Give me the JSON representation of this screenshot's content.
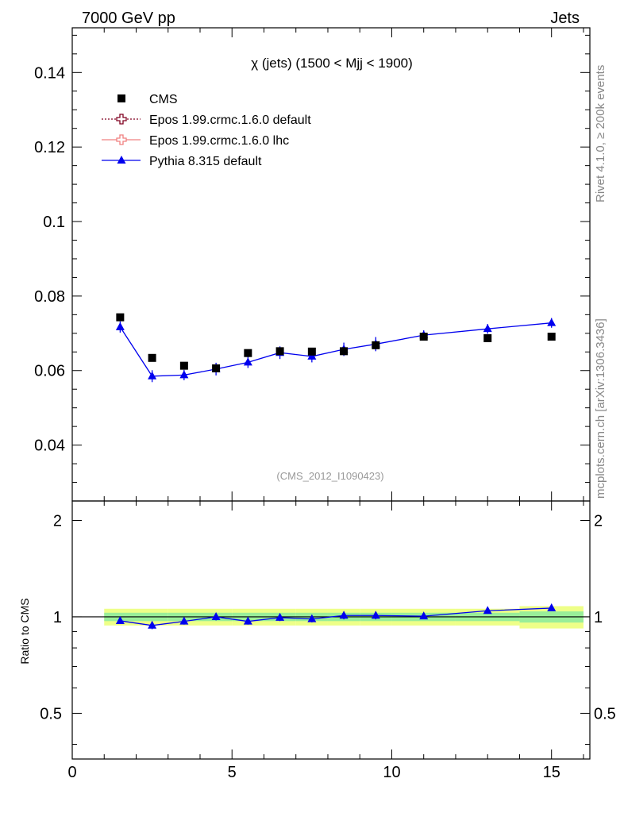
{
  "header": {
    "energy_label": "7000 GeV pp",
    "category_label": "Jets"
  },
  "side": {
    "rivet_label": "Rivet 4.1.0, ≥ 200k events",
    "site_label": "mcplots.cern.ch [arXiv:1306.3436]"
  },
  "chart_data": {
    "type": "scatter",
    "title": "χ (jets) (1500 < Mjj < 1900)",
    "analysis_label": "(CMS_2012_I1090423)",
    "xlabel": "",
    "ylabel": "",
    "xlim": [
      0,
      16.2
    ],
    "ylim": [
      0.025,
      0.152
    ],
    "x_ticks": [
      0,
      5,
      10,
      15
    ],
    "y_ticks": [
      0.04,
      0.06,
      0.08,
      0.1,
      0.12,
      0.14
    ],
    "y_tick_labels": [
      "0.04",
      "0.06",
      "0.08",
      "0.1",
      "0.12",
      "0.14"
    ],
    "x": [
      1.5,
      2.5,
      3.5,
      4.5,
      5.5,
      6.5,
      7.5,
      8.5,
      9.5,
      11,
      13,
      15
    ],
    "x_edges": [
      1,
      2,
      3,
      4,
      5,
      6,
      7,
      8,
      9,
      10,
      12,
      14,
      16
    ],
    "legend": [
      {
        "name": "CMS",
        "marker": "square",
        "color": "#000000"
      },
      {
        "name": "Epos 1.99.crmc.1.6.0 default",
        "marker": "open-cross",
        "color": "#800020"
      },
      {
        "name": "Epos 1.99.crmc.1.6.0 lhc",
        "marker": "open-cross",
        "color": "#f08080"
      },
      {
        "name": "Pythia 8.315 default",
        "marker": "triangle",
        "color": "#0000ee"
      }
    ],
    "series": [
      {
        "name": "CMS",
        "values": [
          0.0743,
          0.0634,
          0.0613,
          0.0606,
          0.0647,
          0.0652,
          0.0651,
          0.0652,
          0.0668,
          0.0691,
          0.0687,
          0.0691
        ],
        "errors": [
          0.0008,
          0.0008,
          0.0008,
          0.0008,
          0.0008,
          0.0008,
          0.0008,
          0.0008,
          0.0009,
          0.0009,
          0.0009,
          0.0009
        ]
      },
      {
        "name": "Pythia 8.315 default",
        "values": [
          0.0717,
          0.0585,
          0.0588,
          0.0604,
          0.0622,
          0.0648,
          0.0638,
          0.0657,
          0.0671,
          0.0695,
          0.0712,
          0.0728
        ],
        "errors": [
          0.0015,
          0.0016,
          0.0014,
          0.0017,
          0.0015,
          0.0017,
          0.0016,
          0.0018,
          0.0019,
          0.0013,
          0.0013,
          0.0013
        ]
      }
    ],
    "ratio": {
      "ylabel": "Ratio to CMS",
      "ylim": [
        0.36,
        2.3
      ],
      "y_ticks": [
        0.5,
        1,
        2
      ],
      "y_tick_labels": [
        "0.5",
        "1",
        "2"
      ],
      "pythia_values": [
        0.972,
        0.94,
        0.968,
        1.0,
        0.968,
        0.995,
        0.985,
        1.01,
        1.01,
        1.005,
        1.045,
        1.065
      ],
      "pythia_errors": [
        0.02,
        0.025,
        0.022,
        0.025,
        0.022,
        0.025,
        0.024,
        0.028,
        0.028,
        0.018,
        0.0,
        0.0
      ],
      "band_outer": [
        0.06,
        0.06,
        0.06,
        0.06,
        0.06,
        0.06,
        0.06,
        0.06,
        0.06,
        0.06,
        0.06,
        0.08
      ],
      "band_inner": [
        0.03,
        0.03,
        0.03,
        0.03,
        0.03,
        0.03,
        0.03,
        0.03,
        0.03,
        0.03,
        0.03,
        0.04
      ],
      "band_outer_color": "#eeff88",
      "band_inner_color": "#99ee99"
    }
  }
}
